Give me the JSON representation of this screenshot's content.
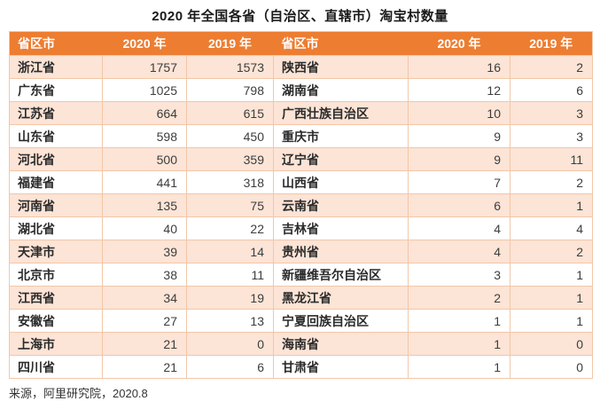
{
  "title": "2020 年全国各省（自治区、直辖市）淘宝村数量",
  "source_note": "来源，阿里研究院，2020.8",
  "colors": {
    "header_bg": "#ED7D31",
    "header_text": "#FFFFFF",
    "row_alt_bg": "#FCE4D6",
    "row_bg": "#FFFFFF",
    "border": "#F2C7A8",
    "body_text": "#262626"
  },
  "chart_data": {
    "type": "table",
    "title": "2020 年全国各省（自治区、直辖市）淘宝村数量",
    "columns": [
      "省区市",
      "2020 年",
      "2019 年",
      "省区市",
      "2020 年",
      "2019 年"
    ],
    "rows": [
      [
        "浙江省",
        1757,
        1573,
        "陕西省",
        16,
        2
      ],
      [
        "广东省",
        1025,
        798,
        "湖南省",
        12,
        6
      ],
      [
        "江苏省",
        664,
        615,
        "广西壮族自治区",
        10,
        3
      ],
      [
        "山东省",
        598,
        450,
        "重庆市",
        9,
        3
      ],
      [
        "河北省",
        500,
        359,
        "辽宁省",
        9,
        11
      ],
      [
        "福建省",
        441,
        318,
        "山西省",
        7,
        2
      ],
      [
        "河南省",
        135,
        75,
        "云南省",
        6,
        1
      ],
      [
        "湖北省",
        40,
        22,
        "吉林省",
        4,
        4
      ],
      [
        "天津市",
        39,
        14,
        "贵州省",
        4,
        2
      ],
      [
        "北京市",
        38,
        11,
        "新疆维吾尔自治区",
        3,
        1
      ],
      [
        "江西省",
        34,
        19,
        "黑龙江省",
        2,
        1
      ],
      [
        "安徽省",
        27,
        13,
        "宁夏回族自治区",
        1,
        1
      ],
      [
        "上海市",
        21,
        0,
        "海南省",
        1,
        0
      ],
      [
        "四川省",
        21,
        6,
        "甘肃省",
        1,
        0
      ]
    ]
  }
}
